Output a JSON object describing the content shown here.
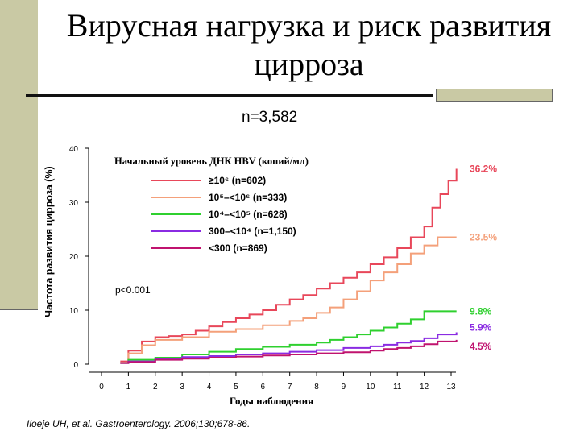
{
  "slide": {
    "title_line1": "Вирусная нагрузка и риск развития",
    "title_line2": "цирроза",
    "subtitle": "n=3,582",
    "citation": "Iloeje UH, et al. Gastroenterology. 2006;130;678-86."
  },
  "chart_data": {
    "type": "line",
    "ylabel": "Частота развития цирроза (%)",
    "xlabel": "Годы наблюдения",
    "xlim": [
      0,
      13
    ],
    "ylim": [
      0,
      40
    ],
    "xticks": [
      "0",
      "1",
      "2",
      "3",
      "4",
      "5",
      "6",
      "7",
      "8",
      "9",
      "10",
      "11",
      "12",
      "13"
    ],
    "yticks": [
      "0",
      "10",
      "20",
      "30",
      "40"
    ],
    "grid": false,
    "legend_title": "Начальный уровень ДНК HBV (копий/мл)",
    "legend_position": "top-left",
    "pvalue": "p<0.001",
    "series": [
      {
        "name": "≥10⁶ (n=602)",
        "color": "#e8475a",
        "end_label": "36.2%",
        "x": [
          0.7,
          1.0,
          1.5,
          2.0,
          2.5,
          3.0,
          3.5,
          4.0,
          4.5,
          5.0,
          5.5,
          6.0,
          6.5,
          7.0,
          7.5,
          8.0,
          8.5,
          9.0,
          9.5,
          10.0,
          10.5,
          11.0,
          11.5,
          12.0,
          12.3,
          12.6,
          12.9,
          13.2
        ],
        "y": [
          0.5,
          2.5,
          4.2,
          5.0,
          5.2,
          5.5,
          6.2,
          7.0,
          7.8,
          8.5,
          9.2,
          10.0,
          11.0,
          12.0,
          12.8,
          14.0,
          15.0,
          16.0,
          17.0,
          18.5,
          19.8,
          21.5,
          23.5,
          25.5,
          29.0,
          31.5,
          34.0,
          36.2
        ]
      },
      {
        "name": "10⁵–<10⁶ (n=333)",
        "color": "#f4a07a",
        "end_label": "23.5%",
        "x": [
          0.7,
          1.0,
          1.5,
          2.0,
          3.0,
          4.0,
          5.0,
          6.0,
          7.0,
          7.5,
          8.0,
          8.5,
          9.0,
          9.5,
          10.0,
          10.5,
          11.0,
          11.5,
          12.0,
          12.5,
          13.2
        ],
        "y": [
          0.3,
          2.0,
          3.5,
          4.5,
          5.0,
          6.0,
          6.5,
          7.2,
          8.0,
          8.5,
          9.5,
          10.5,
          12.0,
          13.5,
          15.5,
          17.0,
          18.5,
          20.5,
          22.0,
          23.5,
          23.5
        ]
      },
      {
        "name": "10⁴–<10⁵ (n=628)",
        "color": "#2fd02f",
        "end_label": "9.8%",
        "x": [
          0.7,
          1.0,
          2.0,
          3.0,
          4.0,
          5.0,
          6.0,
          7.0,
          8.0,
          8.5,
          9.0,
          9.5,
          10.0,
          10.5,
          11.0,
          11.5,
          12.0,
          12.5,
          13.2
        ],
        "y": [
          0.2,
          0.8,
          1.2,
          1.8,
          2.3,
          2.8,
          3.2,
          3.6,
          4.0,
          4.5,
          5.0,
          5.5,
          6.2,
          6.8,
          7.5,
          8.3,
          9.8,
          9.8,
          9.8
        ]
      },
      {
        "name": "300–<10⁴ (n=1,150)",
        "color": "#8a2be2",
        "end_label": "5.9%",
        "x": [
          0.7,
          1.0,
          2.0,
          3.0,
          4.0,
          5.0,
          6.0,
          7.0,
          8.0,
          9.0,
          10.0,
          10.5,
          11.0,
          11.5,
          12.0,
          12.5,
          13.2
        ],
        "y": [
          0.2,
          0.5,
          1.0,
          1.3,
          1.5,
          1.8,
          2.0,
          2.3,
          2.6,
          3.0,
          3.3,
          3.6,
          4.0,
          4.3,
          4.8,
          5.5,
          5.9
        ]
      },
      {
        "name": "<300 (n=869)",
        "color": "#c0136f",
        "end_label": "4.5%",
        "x": [
          0.7,
          1.0,
          2.0,
          3.0,
          4.0,
          5.0,
          6.0,
          7.0,
          8.0,
          9.0,
          10.0,
          10.5,
          11.0,
          11.5,
          12.0,
          12.5,
          13.2
        ],
        "y": [
          0.2,
          0.4,
          0.8,
          1.0,
          1.2,
          1.4,
          1.6,
          1.8,
          2.0,
          2.2,
          2.5,
          2.8,
          3.0,
          3.3,
          3.7,
          4.2,
          4.5
        ]
      }
    ]
  }
}
